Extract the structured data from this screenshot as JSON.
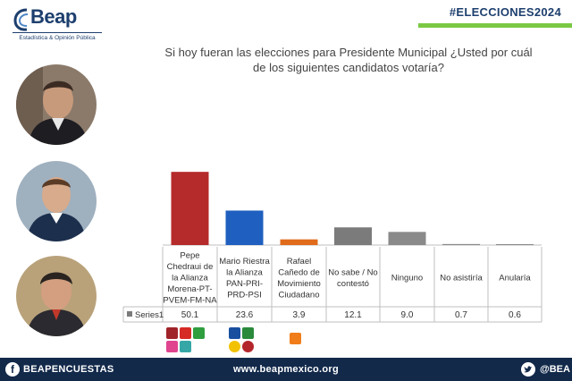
{
  "brand": {
    "name": "Beap",
    "tagline": "Estadística & Opinión Pública"
  },
  "hashtag": "#ELECCIONES2024",
  "question": {
    "line1": "Si hoy fueran las elecciones para Presidente Municipal ¿Usted por cuál",
    "line2": "de los siguientes candidatos votaría?"
  },
  "candidates": [
    {
      "name": "candidate-photo-1"
    },
    {
      "name": "candidate-photo-2"
    },
    {
      "name": "candidate-photo-3"
    }
  ],
  "chart_data": {
    "type": "bar",
    "title": "",
    "categories": [
      [
        "Pepe",
        "Chedraui de",
        "la Alianza",
        "Morena-PT-",
        "PVEM-FM-NA"
      ],
      [
        "Mario Riestra",
        "la Alianza",
        "PAN-PRI-",
        "PRD-PSI"
      ],
      [
        "Rafael",
        "Cañedo de",
        "Movimiento",
        "Ciudadano"
      ],
      [
        "No sabe / No",
        "contestó"
      ],
      [
        "Ninguno"
      ],
      [
        "No asistiría"
      ],
      [
        "Anularía"
      ]
    ],
    "series": [
      {
        "name": "Series1",
        "values": [
          50.1,
          23.6,
          3.9,
          12.1,
          9.0,
          0.7,
          0.6
        ],
        "labels": [
          "50.1",
          "23.6",
          "3.9",
          "12.1",
          "9.0",
          "0.7",
          "0.6"
        ]
      }
    ],
    "colors": [
      "#b52a2a",
      "#1f5fbf",
      "#e06b1b",
      "#7b7b7b",
      "#8a8a8a",
      "#8a8a8a",
      "#8a8a8a"
    ],
    "ylim": [
      0,
      60
    ],
    "xlabel": "",
    "ylabel": "",
    "grid": false
  },
  "footer": {
    "facebook": "BEAPENCUESTAS",
    "website": "www.beapmexico.org",
    "twitter": "@BEA"
  },
  "party_logos": {
    "morena_alliance": [
      "MORENA",
      "PT",
      "PVEM",
      "FM",
      "NA"
    ],
    "pan_alliance": [
      "PAN",
      "PRI",
      "PRD",
      "PSI"
    ],
    "mc": [
      "MC"
    ]
  }
}
